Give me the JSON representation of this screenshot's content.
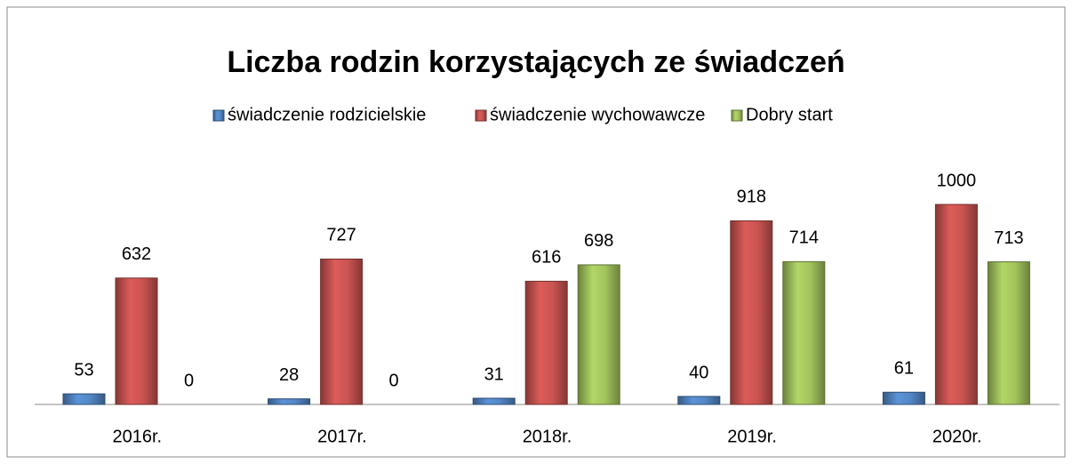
{
  "chart_data": {
    "type": "bar",
    "title": "Liczba rodzin korzystających ze świadczeń",
    "categories": [
      "2016r.",
      "2017r.",
      "2018r.",
      "2019r.",
      "2020r."
    ],
    "series": [
      {
        "name": "świadczenie rodzicielskie",
        "color": "#4f81bd",
        "values": [
          53,
          28,
          31,
          40,
          61
        ]
      },
      {
        "name": "świadczenie wychowawcze",
        "color": "#c0504d",
        "values": [
          632,
          727,
          616,
          918,
          1000
        ]
      },
      {
        "name": "Dobry start",
        "color": "#9bbb59",
        "values": [
          0,
          0,
          698,
          714,
          713
        ]
      }
    ],
    "legend": "top"
  }
}
